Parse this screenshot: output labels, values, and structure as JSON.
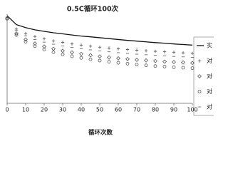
{
  "chart_data": {
    "type": "scatter",
    "title": "0.5C循环100次",
    "x_label": "循环次数",
    "x": [
      0,
      5,
      10,
      15,
      20,
      25,
      30,
      35,
      40,
      45,
      50,
      55,
      60,
      65,
      70,
      75,
      80,
      85,
      90,
      95,
      100
    ],
    "xlim": [
      0,
      100
    ],
    "xticks": [
      0,
      10,
      20,
      30,
      40,
      50,
      60,
      70,
      80,
      90,
      100
    ],
    "ylim": [
      40,
      100
    ],
    "series": [
      {
        "name": "实",
        "color": "#111111",
        "marker": "line",
        "values": [
          99,
          93,
          91,
          89.5,
          88.5,
          87.5,
          86.8,
          86,
          85.3,
          84.8,
          84.2,
          83.6,
          83,
          82.4,
          81.9,
          81.4,
          80.9,
          80.5,
          80,
          79.6,
          79.2
        ]
      },
      {
        "name": "对",
        "color": "#555555",
        "marker": "plus",
        "values": [
          98,
          90,
          87,
          85,
          83.5,
          82,
          81,
          80,
          79.2,
          78.5,
          77.8,
          77.2,
          76.7,
          76.2,
          75.8,
          75.4,
          75,
          74.7,
          74.4,
          74,
          73.7
        ]
      },
      {
        "name": "对",
        "color": "#555555",
        "marker": "diamond",
        "values": [
          97,
          87,
          83,
          80.3,
          78.3,
          76.7,
          75.4,
          74.3,
          73.3,
          72.4,
          71.6,
          70.9,
          70.3,
          69.8,
          69.3,
          68.9,
          68.5,
          68.1,
          67.8,
          67.5,
          67.2
        ]
      },
      {
        "name": "对",
        "color": "#555555",
        "marker": "circle",
        "values": [
          97,
          86,
          81.5,
          78.5,
          76.2,
          74.4,
          73,
          71.7,
          70.6,
          69.6,
          68.8,
          68,
          67.3,
          66.7,
          66.1,
          65.6,
          65.1,
          64.7,
          64.3,
          64,
          63.7
        ]
      },
      {
        "name": "对",
        "color": "#555555",
        "marker": "dash",
        "values": [
          98,
          89,
          85.5,
          83,
          81.2,
          79.8,
          78.6,
          77.6,
          76.8,
          76,
          75.3,
          74.7,
          74.1,
          73.6,
          73.1,
          72.7,
          72.3,
          71.9,
          71.6,
          71.3,
          71
        ]
      }
    ]
  }
}
